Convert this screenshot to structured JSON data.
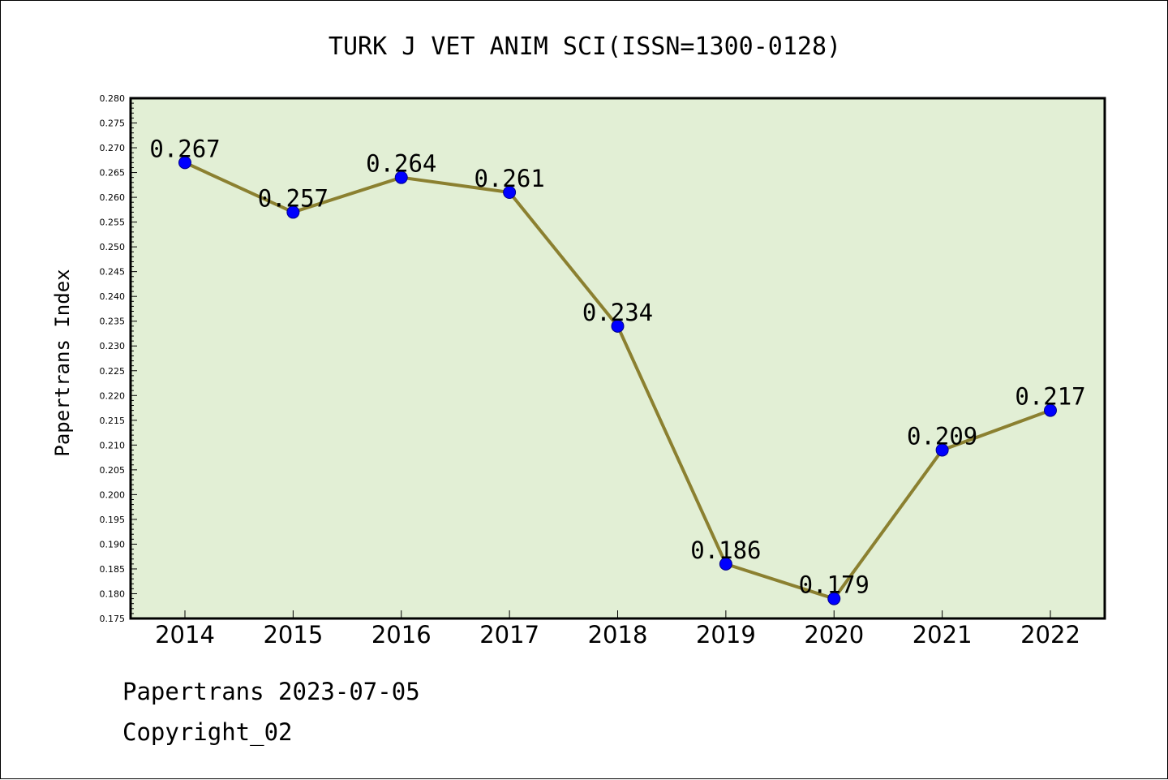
{
  "chart_data": {
    "type": "line",
    "title": "TURK J VET ANIM SCI(ISSN=1300-0128)",
    "xlabel": "",
    "ylabel": "Papertrans Index",
    "categories": [
      "2014",
      "2015",
      "2016",
      "2017",
      "2018",
      "2019",
      "2020",
      "2021",
      "2022"
    ],
    "series": [
      {
        "values": [
          0.267,
          0.257,
          0.264,
          0.261,
          0.234,
          0.186,
          0.179,
          0.209,
          0.217
        ],
        "data_labels": [
          "0.267",
          "0.257",
          "0.264",
          "0.261",
          "0.234",
          "0.186",
          "0.179",
          "0.209",
          "0.217"
        ],
        "line_color": "#8b8030",
        "marker_color": "#0000ff"
      }
    ],
    "ylim": [
      0.175,
      0.28
    ],
    "yticks": [
      "0.175",
      "0.180",
      "0.185",
      "0.190",
      "0.195",
      "0.200",
      "0.205",
      "0.210",
      "0.215",
      "0.220",
      "0.225",
      "0.230",
      "0.235",
      "0.240",
      "0.245",
      "0.250",
      "0.255",
      "0.260",
      "0.265",
      "0.270",
      "0.275",
      "0.280"
    ],
    "plot_background": "#e2efd5",
    "grid": false,
    "legend": "none"
  },
  "footer": {
    "line1": "Papertrans 2023-07-05",
    "line2": "Copyright_02"
  }
}
